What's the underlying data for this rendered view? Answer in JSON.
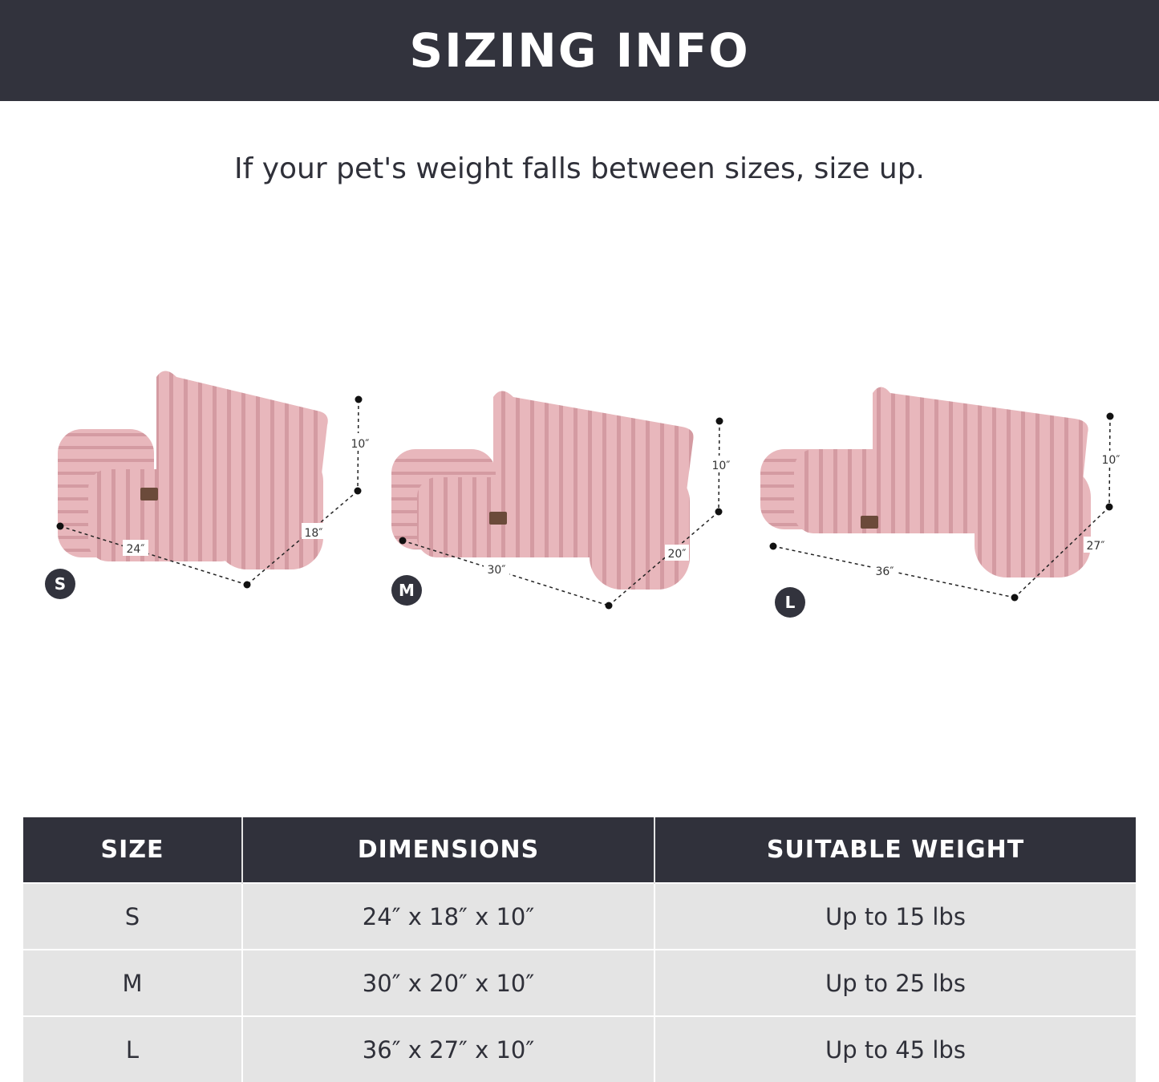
{
  "header": {
    "title": "SIZING INFO"
  },
  "subtitle": "If your pet's weight falls between sizes, size up.",
  "colors": {
    "banner": "#32333d",
    "row_bg": "#e4e4e4",
    "bed_pink": "#e6b3b8"
  },
  "beds": [
    {
      "size": "S",
      "width": "24″",
      "depth": "18″",
      "height": "10″"
    },
    {
      "size": "M",
      "width": "30″",
      "depth": "20″",
      "height": "10″"
    },
    {
      "size": "L",
      "width": "36″",
      "depth": "27″",
      "height": "10″"
    }
  ],
  "table": {
    "headers": [
      "SIZE",
      "DIMENSIONS",
      "SUITABLE WEIGHT"
    ],
    "rows": [
      [
        "S",
        "24″ x 18″ x 10″",
        "Up to 15 lbs"
      ],
      [
        "M",
        "30″ x 20″ x 10″",
        "Up to 25 lbs"
      ],
      [
        "L",
        "36″ x 27″ x 10″",
        "Up to 45 lbs"
      ]
    ]
  }
}
